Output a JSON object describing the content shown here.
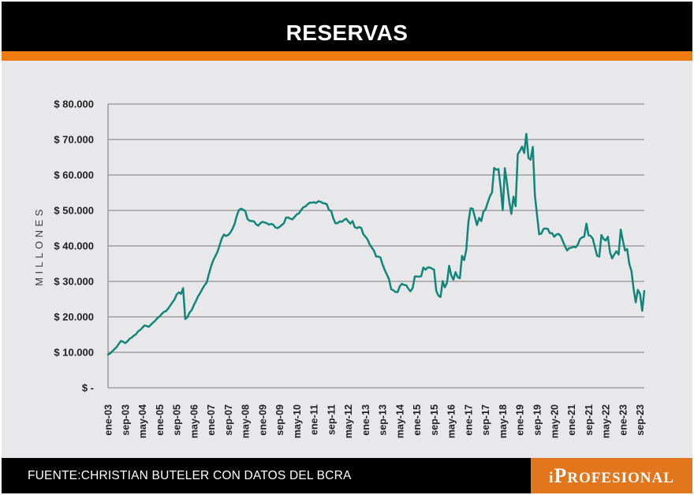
{
  "header": {
    "title": "RESERVAS"
  },
  "footer": {
    "source": "FUENTE:CHRISTIAN BUTELER CON DATOS DEL BCRA",
    "logo": {
      "first": "i",
      "cap": "P",
      "rest": "ROFESIONAL"
    }
  },
  "colors": {
    "accent_orange": "#EE7C10",
    "logo_orange": "#E2761C",
    "line_teal": "#12857A",
    "gridline_gray": "#909090",
    "panel_gray": "#E8E8EA",
    "axis_text": "#1F1F1F",
    "header_black": "#000000",
    "text_white": "#FFFFFF"
  },
  "chart_data": {
    "type": "line",
    "title": "RESERVAS",
    "xlabel": "",
    "ylabel": "MILLONES",
    "ylim": [
      0,
      80000
    ],
    "grid": true,
    "legend": "none",
    "ytick_labels_top_to_bottom": [
      "$ 80.000",
      "$ 70.000",
      "$ 60.000",
      "$ 50.000",
      "$ 40.000",
      "$ 30.000",
      "$ 20.000",
      "$ 10.000",
      "$ -"
    ],
    "x_start": "ene-03",
    "x_end": "nov-23",
    "x_frequency": "monthly",
    "xtick_every_n_months": 8,
    "xtick_labels": [
      "ene-03",
      "sep-03",
      "may-04",
      "ene-05",
      "sep-05",
      "may-06",
      "ene-07",
      "sep-07",
      "may-08",
      "ene-09",
      "sep-09",
      "may-10",
      "ene-11",
      "sep-11",
      "may-12",
      "ene-13",
      "sep-13",
      "may-14",
      "ene-15",
      "sep-15",
      "may-16",
      "ene-17",
      "sep-17",
      "may-18",
      "ene-19",
      "sep-19",
      "may-20",
      "ene-21",
      "sep-21",
      "may-22",
      "ene-23",
      "sep-23"
    ],
    "series": [
      {
        "name": "Reservas",
        "values": [
          9400,
          9700,
          10300,
          10900,
          11500,
          12400,
          13200,
          13000,
          12600,
          13100,
          13800,
          14150,
          14700,
          15100,
          15900,
          16300,
          16900,
          17600,
          17400,
          17200,
          17800,
          18400,
          18900,
          19650,
          20100,
          20800,
          21400,
          21600,
          22300,
          23200,
          24100,
          24900,
          26300,
          26900,
          26500,
          28100,
          19400,
          19900,
          21200,
          21900,
          23300,
          24500,
          25800,
          26800,
          27900,
          28900,
          29700,
          32000,
          34200,
          35900,
          37100,
          38300,
          40100,
          42100,
          43200,
          42800,
          43100,
          43700,
          44800,
          46200,
          48500,
          50100,
          50500,
          50200,
          49800,
          47600,
          47100,
          47000,
          46900,
          46100,
          45700,
          46400,
          46800,
          46600,
          46400,
          46000,
          46200,
          46000,
          45200,
          45000,
          45400,
          45900,
          46400,
          48000,
          48000,
          47700,
          47500,
          48200,
          48900,
          49200,
          50100,
          50900,
          51100,
          51700,
          52200,
          52200,
          52300,
          52100,
          52600,
          52500,
          52100,
          52000,
          51700,
          50100,
          49900,
          47800,
          46400,
          46400,
          46900,
          46800,
          47300,
          47700,
          46900,
          46300,
          47000,
          45300,
          45000,
          45300,
          45100,
          43300,
          42600,
          41800,
          40400,
          39500,
          38600,
          37000,
          37000,
          36700,
          34700,
          33200,
          31900,
          30600,
          27800,
          27500,
          27000,
          27000,
          28600,
          29300,
          29000,
          28900,
          27900,
          27200,
          28100,
          31400,
          31400,
          31300,
          31500,
          33900,
          33300,
          33900,
          33900,
          33600,
          33300,
          27300,
          26000,
          25600,
          30100,
          28300,
          29600,
          34400,
          31700,
          30500,
          32600,
          31200,
          30900,
          37200,
          36000,
          38800,
          46800,
          50600,
          50500,
          48200,
          45900,
          47900,
          47000,
          49700,
          50300,
          52200,
          54000,
          55100,
          62000,
          61500,
          61700,
          56600,
          50100,
          61900,
          57600,
          52700,
          49000,
          53900,
          51200,
          65800,
          66800,
          68000,
          66200,
          71600,
          64800,
          64300,
          67900,
          54100,
          48700,
          43300,
          43500,
          44800,
          44900,
          44800,
          43600,
          43600,
          42600,
          43200,
          43400,
          42800,
          41400,
          39900,
          38700,
          39400,
          39500,
          39800,
          39600,
          40400,
          41900,
          42400,
          42600,
          46300,
          43000,
          42800,
          42000,
          39600,
          37200,
          37000,
          43100,
          42000,
          41500,
          42600,
          38200,
          36500,
          37600,
          38500,
          37600,
          44600,
          41500,
          38700,
          39100,
          34900,
          32900,
          27900,
          24100,
          27600,
          26500,
          21700,
          27300
        ]
      }
    ]
  }
}
